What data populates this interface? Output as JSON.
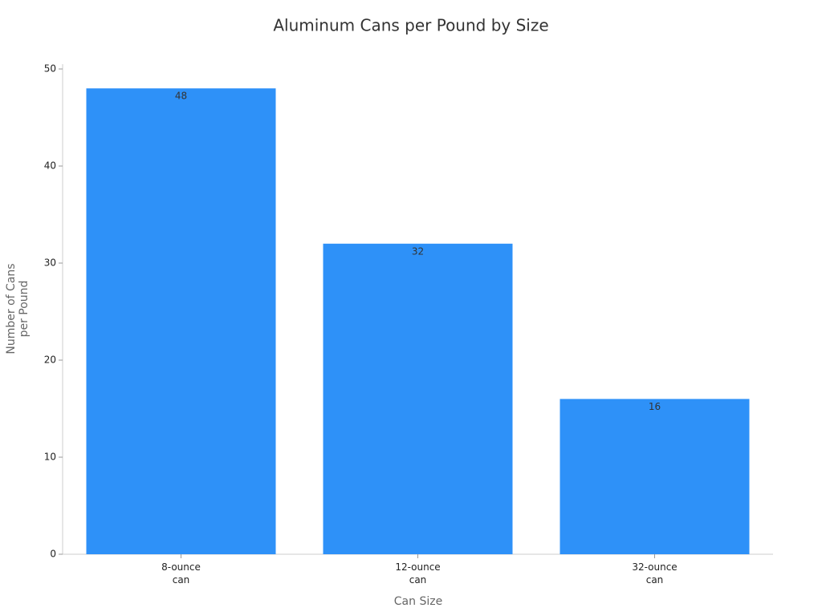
{
  "chart_data": {
    "type": "bar",
    "title": "Aluminum Cans per Pound by Size",
    "x_label": "Can Size",
    "y_label": "Number of Cans\nper Pound",
    "categories": [
      "8-ounce\ncan",
      "12-ounce\ncan",
      "32-ounce\ncan"
    ],
    "values": [
      48,
      32,
      16
    ],
    "color": "#2e91f8",
    "ylim": [
      0,
      50
    ],
    "yticks": [
      0,
      10,
      20,
      30,
      40,
      50
    ],
    "grid": false
  }
}
